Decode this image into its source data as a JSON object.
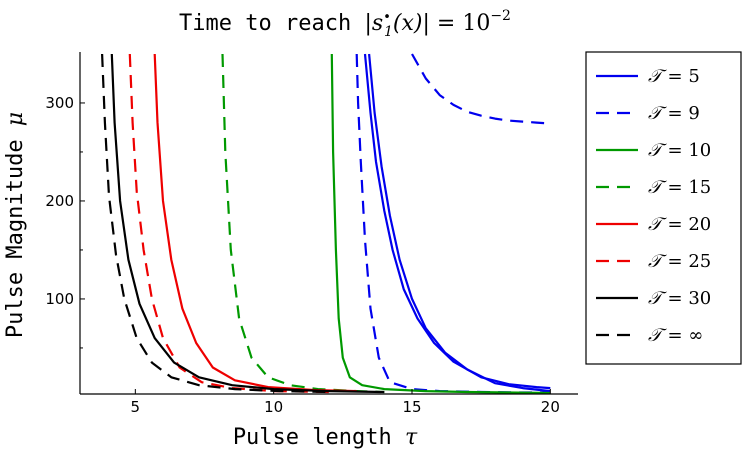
{
  "chart_data": {
    "type": "line",
    "title": {
      "prefix": "Time to reach ",
      "math_open": "|",
      "math_s": "s",
      "math_sup": "•",
      "math_sub": "1",
      "math_arg": "(x)",
      "math_close": "| = 10",
      "math_exp": "−2"
    },
    "xlabel": {
      "text": "Pulse length ",
      "symbol": "τ"
    },
    "ylabel": {
      "text": "Pulse Magnitude ",
      "symbol": "μ"
    },
    "xlim": [
      3,
      21
    ],
    "ylim": [
      3,
      352
    ],
    "x_ticks": [
      5,
      10,
      15,
      20
    ],
    "x_tick_labels": [
      "5",
      "10",
      "15",
      "20"
    ],
    "y_ticks": [
      100,
      200,
      300
    ],
    "y_tick_labels": [
      "100",
      "200",
      "300"
    ],
    "y_minor_ticks": [
      50,
      150,
      250
    ],
    "grid": false,
    "legend_position": "outside-right",
    "series": [
      {
        "name": "𝒯 = 5",
        "color": "#0000ee",
        "dash": "solid",
        "x": [
          13.3,
          13.5,
          13.7,
          14.0,
          14.3,
          14.7,
          15.2,
          15.8,
          16.5,
          17.5,
          18.5,
          19.5,
          20.0
        ],
        "y": [
          350,
          290,
          240,
          190,
          150,
          110,
          80,
          55,
          36,
          20,
          13,
          10,
          9
        ]
      },
      {
        "name": "𝒯 = 5",
        "color": "#0000ee",
        "dash": "solid",
        "legend": false,
        "x": [
          13.45,
          13.65,
          13.9,
          14.2,
          14.55,
          15.0,
          15.5,
          16.2,
          17.0,
          18.0,
          19.0,
          20.0
        ],
        "y": [
          350,
          290,
          235,
          185,
          140,
          100,
          70,
          45,
          28,
          14,
          9,
          6
        ]
      },
      {
        "name": "𝒯 = 9",
        "color": "#0000ee",
        "dash": "dashed",
        "x": [
          13.0,
          13.05,
          13.15,
          13.3,
          13.5,
          13.8,
          14.2,
          15.0,
          16.0,
          17.5,
          19.0,
          20.0
        ],
        "y": [
          350,
          300,
          240,
          160,
          90,
          40,
          15,
          8,
          6,
          5,
          4.5,
          4.5
        ]
      },
      {
        "name": "𝒯 = 9",
        "color": "#0000ee",
        "dash": "dashed",
        "legend": false,
        "x": [
          15.0,
          15.5,
          16.0,
          16.5,
          17.0,
          17.5,
          18.0,
          18.5,
          19.0,
          19.5,
          20.0
        ],
        "y": [
          350,
          325,
          308,
          298,
          291,
          287,
          284,
          282,
          281,
          280,
          279
        ]
      },
      {
        "name": "𝒯 = 10",
        "color": "#009900",
        "dash": "solid",
        "x": [
          12.1,
          12.15,
          12.25,
          12.35,
          12.5,
          12.75,
          13.2,
          14.0,
          15.5,
          17.0,
          20.0
        ],
        "y": [
          350,
          250,
          150,
          80,
          40,
          20,
          12,
          8,
          6,
          5,
          4
        ]
      },
      {
        "name": "𝒯 = 15",
        "color": "#009900",
        "dash": "dashed",
        "x": [
          8.15,
          8.25,
          8.45,
          8.75,
          9.2,
          9.8,
          10.6,
          11.6,
          13.0,
          14.0
        ],
        "y": [
          350,
          250,
          150,
          80,
          40,
          20,
          12,
          8,
          6,
          5
        ]
      },
      {
        "name": "𝒯 = 20",
        "color": "#ee0000",
        "dash": "solid",
        "x": [
          5.7,
          5.8,
          6.0,
          6.3,
          6.7,
          7.2,
          7.8,
          8.6,
          9.8,
          11.5,
          13.0
        ],
        "y": [
          350,
          280,
          200,
          140,
          90,
          55,
          30,
          17,
          10,
          7,
          6
        ]
      },
      {
        "name": "𝒯 = 25",
        "color": "#ee0000",
        "dash": "dashed",
        "x": [
          4.8,
          4.9,
          5.05,
          5.3,
          5.6,
          6.0,
          6.6,
          7.4,
          8.5,
          10.0,
          12.0
        ],
        "y": [
          350,
          280,
          210,
          150,
          100,
          60,
          30,
          15,
          9,
          6,
          5
        ]
      },
      {
        "name": "𝒯 = 30",
        "color": "#000000",
        "dash": "solid",
        "x": [
          4.15,
          4.25,
          4.45,
          4.75,
          5.15,
          5.7,
          6.4,
          7.3,
          8.5,
          10.0,
          12.0,
          14.0
        ],
        "y": [
          350,
          280,
          200,
          140,
          95,
          60,
          35,
          20,
          12,
          8,
          6,
          5
        ]
      },
      {
        "name": "𝒯 = ∞",
        "color": "#000000",
        "dash": "dashed",
        "x": [
          3.8,
          3.9,
          4.05,
          4.3,
          4.6,
          5.05,
          5.6,
          6.3,
          7.3,
          8.6,
          10.2,
          12.0
        ],
        "y": [
          350,
          280,
          205,
          145,
          100,
          60,
          35,
          20,
          12,
          8,
          6,
          5
        ]
      }
    ]
  }
}
